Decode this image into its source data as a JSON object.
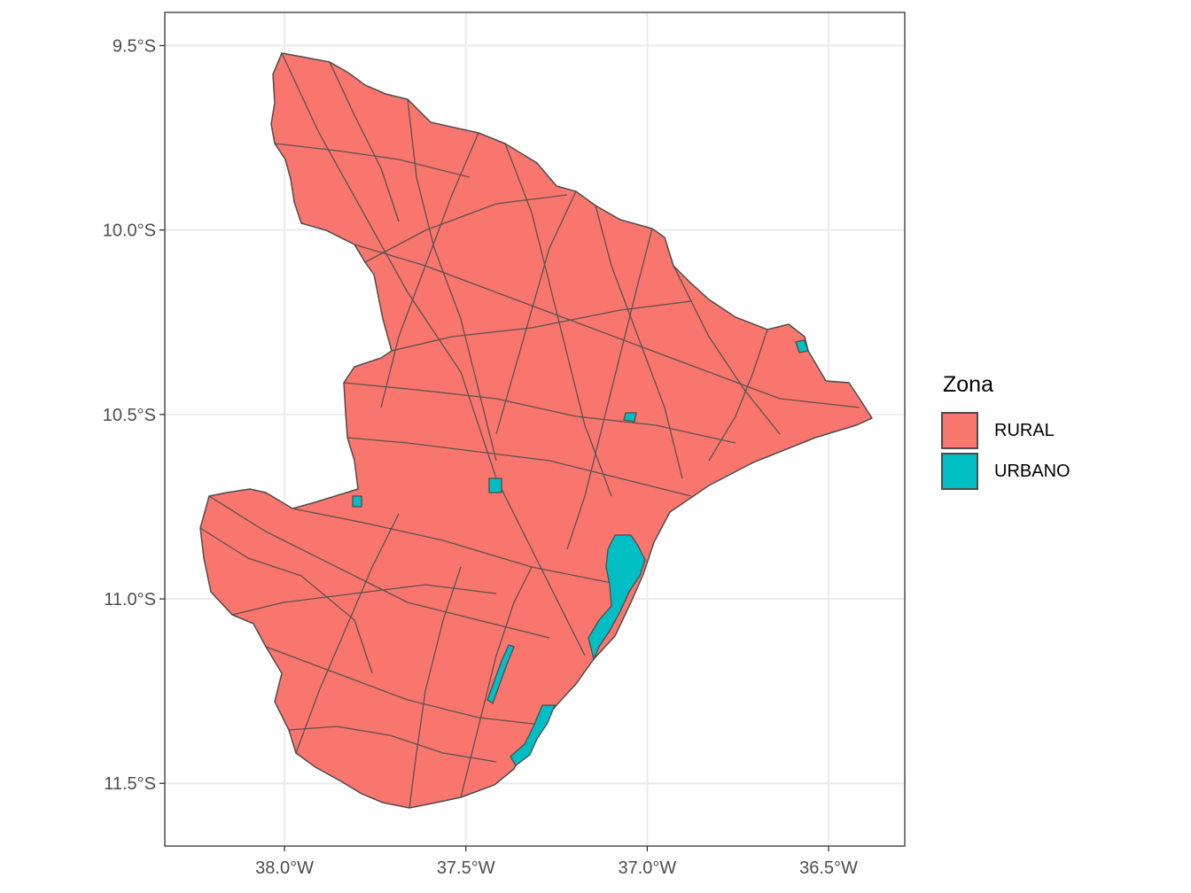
{
  "chart_data": {
    "type": "map",
    "region": "Sergipe",
    "x_axis": {
      "ticks": [
        -38.0,
        -37.5,
        -37.0,
        -36.5
      ],
      "tick_labels": [
        "38.0°W",
        "37.5°W",
        "37.0°W",
        "36.5°W"
      ],
      "range": [
        -38.33,
        -36.29
      ]
    },
    "y_axis": {
      "ticks": [
        -9.5,
        -10.0,
        -10.5,
        -11.0,
        -11.5
      ],
      "tick_labels": [
        "9.5°S",
        "10.0°S",
        "10.5°S",
        "11.0°S",
        "11.5°S"
      ],
      "range": [
        -11.67,
        -9.41
      ]
    },
    "grid": true,
    "legend": {
      "title": "Zona",
      "position": "right",
      "items": [
        {
          "label": "RURAL",
          "color": "#F8766D"
        },
        {
          "label": "URBANO",
          "color": "#00BFC4"
        }
      ]
    },
    "outline_color": "#4d4d4d"
  }
}
